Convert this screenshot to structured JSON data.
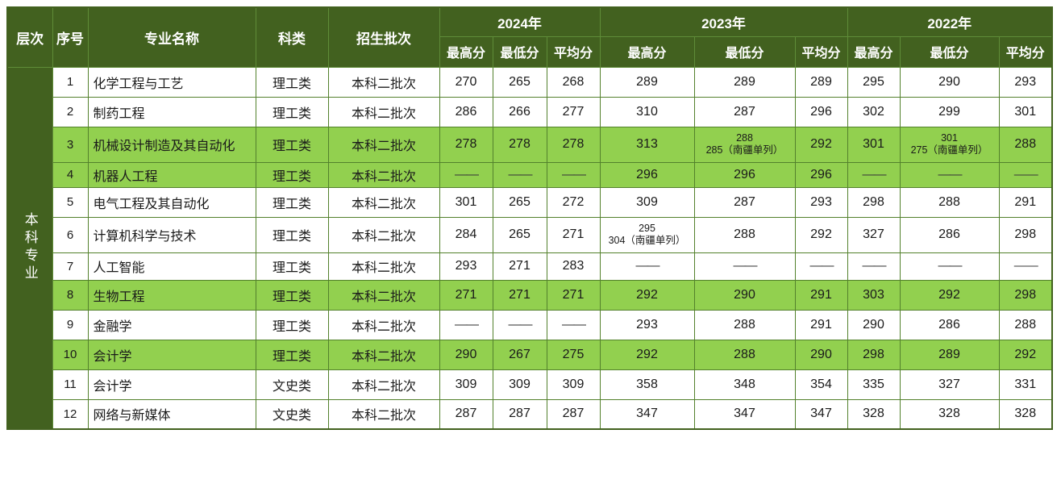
{
  "table": {
    "level_label": "本科专业",
    "columns": {
      "level": "层次",
      "index": "序号",
      "major": "专业名称",
      "category": "科类",
      "batch": "招生批次"
    },
    "year_groups": [
      {
        "year": "2024年",
        "sub": [
          "最高分",
          "最低分",
          "平均分"
        ]
      },
      {
        "year": "2023年",
        "sub": [
          "最高分",
          "最低分",
          "平均分"
        ]
      },
      {
        "year": "2022年",
        "sub": [
          "最高分",
          "最低分",
          "平均分"
        ]
      }
    ],
    "rows": [
      {
        "index": "1",
        "major": "化学工程与工艺",
        "category": "理工类",
        "batch": "本科二批次",
        "highlight": false,
        "scores": [
          "270",
          "265",
          "268",
          "289",
          "289",
          "289",
          "295",
          "290",
          "293"
        ]
      },
      {
        "index": "2",
        "major": "制药工程",
        "category": "理工类",
        "batch": "本科二批次",
        "highlight": false,
        "scores": [
          "286",
          "266",
          "277",
          "310",
          "287",
          "296",
          "302",
          "299",
          "301"
        ]
      },
      {
        "index": "3",
        "major": "机械设计制造及其自动化",
        "category": "理工类",
        "batch": "本科二批次",
        "highlight": true,
        "scores": [
          "278",
          "278",
          "278",
          "313",
          "288\n285（南疆单列）",
          "292",
          "301",
          "301\n275（南疆单列）",
          "288"
        ]
      },
      {
        "index": "4",
        "major": "机器人工程",
        "category": "理工类",
        "batch": "本科二批次",
        "highlight": true,
        "scores": [
          "——",
          "——",
          "——",
          "296",
          "296",
          "296",
          "——",
          "——",
          "——"
        ]
      },
      {
        "index": "5",
        "major": "电气工程及其自动化",
        "category": "理工类",
        "batch": "本科二批次",
        "highlight": false,
        "scores": [
          "301",
          "265",
          "272",
          "309",
          "287",
          "293",
          "298",
          "288",
          "291"
        ]
      },
      {
        "index": "6",
        "major": "计算机科学与技术",
        "category": "理工类",
        "batch": "本科二批次",
        "highlight": false,
        "scores": [
          "284",
          "265",
          "271",
          "295\n304（南疆单列）",
          "288",
          "292",
          "327",
          "286",
          "298"
        ]
      },
      {
        "index": "7",
        "major": "人工智能",
        "category": "理工类",
        "batch": "本科二批次",
        "highlight": false,
        "scores": [
          "293",
          "271",
          "283",
          "——",
          "——",
          "——",
          "——",
          "——",
          "——"
        ]
      },
      {
        "index": "8",
        "major": "生物工程",
        "category": "理工类",
        "batch": "本科二批次",
        "highlight": true,
        "scores": [
          "271",
          "271",
          "271",
          "292",
          "290",
          "291",
          "303",
          "292",
          "298"
        ]
      },
      {
        "index": "9",
        "major": "金融学",
        "category": "理工类",
        "batch": "本科二批次",
        "highlight": false,
        "scores": [
          "——",
          "——",
          "——",
          "293",
          "288",
          "291",
          "290",
          "286",
          "288"
        ]
      },
      {
        "index": "10",
        "major": "会计学",
        "category": "理工类",
        "batch": "本科二批次",
        "highlight": true,
        "scores": [
          "290",
          "267",
          "275",
          "292",
          "288",
          "290",
          "298",
          "289",
          "292"
        ]
      },
      {
        "index": "11",
        "major": "会计学",
        "category": "文史类",
        "batch": "本科二批次",
        "highlight": false,
        "scores": [
          "309",
          "309",
          "309",
          "358",
          "348",
          "354",
          "335",
          "327",
          "331"
        ]
      },
      {
        "index": "12",
        "major": "网络与新媒体",
        "category": "文史类",
        "batch": "本科二批次",
        "highlight": false,
        "scores": [
          "287",
          "287",
          "287",
          "347",
          "347",
          "347",
          "328",
          "328",
          "328"
        ]
      }
    ],
    "colors": {
      "header_bg": "#42611f",
      "highlight_bg": "#92d04f",
      "grid_border": "#53812c",
      "header_divider": "#5f8c38",
      "header_text": "#ffffff",
      "body_text": "#1a1a1a"
    }
  }
}
